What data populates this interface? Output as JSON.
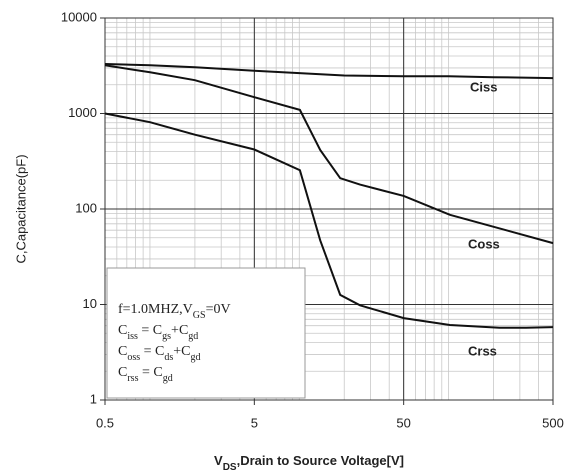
{
  "chart_data": {
    "type": "line",
    "xlabel": [
      "V",
      "DS",
      ",Drain to Source Voltage[V]"
    ],
    "ylabel": "C,Capacitance(pF)",
    "xscale": "log",
    "yscale": "log",
    "xlim": [
      0.5,
      500
    ],
    "ylim": [
      1,
      10000
    ],
    "xticks": [
      0.5,
      5,
      50,
      500
    ],
    "yticks": [
      1,
      10,
      100,
      1000,
      10000
    ],
    "grid": true,
    "minor_grid": true,
    "series": [
      {
        "name": "Ciss",
        "color": "#111111",
        "x": [
          0.5,
          1,
          2,
          5,
          10,
          20,
          50,
          100,
          200,
          500
        ],
        "values": [
          3300,
          3200,
          3050,
          2800,
          2650,
          2500,
          2450,
          2450,
          2400,
          2350
        ]
      },
      {
        "name": "Coss",
        "color": "#111111",
        "x": [
          0.5,
          1,
          2,
          5,
          10.1,
          13.8,
          18.8,
          25.5,
          50,
          102,
          500
        ],
        "values": [
          3200,
          2700,
          2230,
          1480,
          1090,
          415,
          210,
          180,
          137,
          87,
          44
        ]
      },
      {
        "name": "Crss",
        "color": "#111111",
        "x": [
          0.5,
          1,
          2,
          5,
          10.1,
          13.8,
          18.8,
          25.5,
          50,
          102,
          219,
          330,
          500
        ],
        "values": [
          1000,
          810,
          600,
          420,
          255,
          47,
          12.6,
          9.8,
          7.2,
          6.1,
          5.7,
          5.7,
          5.8
        ]
      }
    ],
    "note_lines": [
      [
        "f=1.0MHZ,V",
        "GS",
        "=0V"
      ],
      [
        "C",
        "iss",
        " = C",
        "gs",
        "+C",
        "gd"
      ],
      [
        "C",
        "oss",
        " = C",
        "ds",
        "+C",
        "gd"
      ],
      [
        "C",
        "rss",
        " = C",
        "gd"
      ]
    ]
  }
}
